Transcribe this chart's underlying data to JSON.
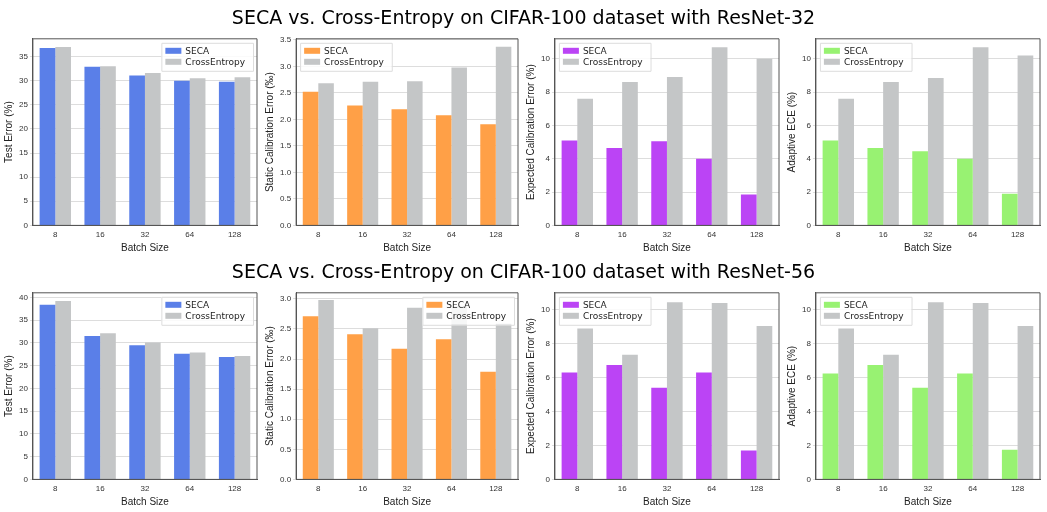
{
  "chart_data": [
    {
      "type": "bar",
      "title": "SECA vs. Cross-Entropy on CIFAR-100 dataset with ResNet-32",
      "xlabel": "Batch Size",
      "ylabel": "Test Error (%)",
      "categories": [
        "8",
        "16",
        "32",
        "64",
        "128"
      ],
      "ylim": [
        0,
        38.7
      ],
      "yticks": [
        0,
        5,
        10,
        15,
        20,
        25,
        30,
        35
      ],
      "grid": "y",
      "legend": "top right",
      "series": [
        {
          "name": "SECA",
          "color": "#5a7fe8",
          "values": [
            36.8,
            32.9,
            31.1,
            30.0,
            29.8
          ]
        },
        {
          "name": "CrossEntropy",
          "color": "#c4c6c7",
          "values": [
            37.0,
            33.0,
            31.6,
            30.5,
            30.7
          ]
        }
      ]
    },
    {
      "type": "bar",
      "xlabel": "Batch Size",
      "ylabel": "Static Calibration Error (‰)",
      "categories": [
        "8",
        "16",
        "32",
        "64",
        "128"
      ],
      "ylim": [
        0,
        3.52
      ],
      "yticks": [
        {
          "value": 0,
          "label": "0.0"
        },
        {
          "value": 0.5,
          "label": "0.5"
        },
        {
          "value": 1,
          "label": "1.0"
        },
        {
          "value": 1.5,
          "label": "1.5"
        },
        {
          "value": 2,
          "label": "2.0"
        },
        {
          "value": 2.5,
          "label": "2.5"
        },
        {
          "value": 3,
          "label": "3.0"
        },
        {
          "value": 3.5,
          "label": "3.5"
        }
      ],
      "grid": "y",
      "legend": "top left",
      "series": [
        {
          "name": "SECA",
          "color": "#ffa047",
          "values": [
            2.52,
            2.26,
            2.19,
            2.08,
            1.91
          ]
        },
        {
          "name": "CrossEntropy",
          "color": "#c4c6c7",
          "values": [
            2.68,
            2.71,
            2.72,
            2.98,
            3.37
          ]
        }
      ]
    },
    {
      "type": "bar",
      "xlabel": "Batch Size",
      "ylabel": "Expected Calibration Error (%)",
      "categories": [
        "8",
        "16",
        "32",
        "64",
        "128"
      ],
      "ylim": [
        0,
        11.2
      ],
      "yticks": [
        0,
        2,
        4,
        6,
        8,
        10
      ],
      "grid": "y",
      "legend": "top left",
      "series": [
        {
          "name": "SECA",
          "color": "#bb44f5",
          "values": [
            5.1,
            4.65,
            5.05,
            4.0,
            1.85
          ]
        },
        {
          "name": "CrossEntropy",
          "color": "#c4c6c7",
          "values": [
            7.6,
            8.6,
            8.9,
            10.7,
            10.0
          ]
        }
      ]
    },
    {
      "type": "bar",
      "xlabel": "Batch Size",
      "ylabel": "Adaptive ECE (%)",
      "categories": [
        "8",
        "16",
        "32",
        "64",
        "128"
      ],
      "ylim": [
        0,
        11.2
      ],
      "yticks": [
        0,
        2,
        4,
        6,
        8,
        10
      ],
      "grid": "y",
      "legend": "top left",
      "series": [
        {
          "name": "SECA",
          "color": "#98f272",
          "values": [
            5.1,
            4.65,
            4.45,
            4.0,
            1.9
          ]
        },
        {
          "name": "CrossEntropy",
          "color": "#c4c6c7",
          "values": [
            7.6,
            8.6,
            8.85,
            10.7,
            10.2
          ]
        }
      ]
    },
    {
      "type": "bar",
      "title": "SECA vs. Cross-Entropy on CIFAR-100 dataset with ResNet-56",
      "xlabel": "Batch Size",
      "ylabel": "Test Error (%)",
      "categories": [
        "8",
        "16",
        "32",
        "64",
        "128"
      ],
      "ylim": [
        0,
        41
      ],
      "yticks": [
        0,
        5,
        10,
        15,
        20,
        25,
        30,
        35,
        40
      ],
      "grid": "y",
      "legend": "top right",
      "series": [
        {
          "name": "SECA",
          "color": "#5a7fe8",
          "values": [
            38.4,
            31.5,
            29.5,
            27.6,
            26.9
          ]
        },
        {
          "name": "CrossEntropy",
          "color": "#c4c6c7",
          "values": [
            39.2,
            32.1,
            30.1,
            27.9,
            27.1
          ]
        }
      ]
    },
    {
      "type": "bar",
      "xlabel": "Batch Size",
      "ylabel": "Static Calibration Error (‰)",
      "categories": [
        "8",
        "16",
        "32",
        "64",
        "128"
      ],
      "ylim": [
        0,
        3.1
      ],
      "yticks": [
        {
          "value": 0,
          "label": "0.0"
        },
        {
          "value": 0.5,
          "label": "0.5"
        },
        {
          "value": 1,
          "label": "1.0"
        },
        {
          "value": 1.5,
          "label": "1.5"
        },
        {
          "value": 2,
          "label": "2.0"
        },
        {
          "value": 2.5,
          "label": "2.5"
        },
        {
          "value": 3,
          "label": "3.0"
        }
      ],
      "grid": "y",
      "legend": "top right",
      "series": [
        {
          "name": "SECA",
          "color": "#ffa047",
          "values": [
            2.71,
            2.41,
            2.17,
            2.33,
            1.79
          ]
        },
        {
          "name": "CrossEntropy",
          "color": "#c4c6c7",
          "values": [
            2.98,
            2.51,
            2.85,
            2.88,
            2.59
          ]
        }
      ]
    },
    {
      "type": "bar",
      "xlabel": "Batch Size",
      "ylabel": "Expected Calibration Error (%)",
      "categories": [
        "8",
        "16",
        "32",
        "64",
        "128"
      ],
      "ylim": [
        0,
        11
      ],
      "yticks": [
        0,
        2,
        4,
        6,
        8,
        10
      ],
      "grid": "y",
      "legend": "top left",
      "series": [
        {
          "name": "SECA",
          "color": "#bb44f5",
          "values": [
            6.3,
            6.75,
            5.4,
            6.3,
            1.7
          ]
        },
        {
          "name": "CrossEntropy",
          "color": "#c4c6c7",
          "values": [
            8.9,
            7.35,
            10.45,
            10.4,
            9.05
          ]
        }
      ]
    },
    {
      "type": "bar",
      "xlabel": "Batch Size",
      "ylabel": "Adaptive ECE (%)",
      "categories": [
        "8",
        "16",
        "32",
        "64",
        "128"
      ],
      "ylim": [
        0,
        11
      ],
      "yticks": [
        0,
        2,
        4,
        6,
        8,
        10
      ],
      "grid": "y",
      "legend": "top left",
      "series": [
        {
          "name": "SECA",
          "color": "#98f272",
          "values": [
            6.25,
            6.75,
            5.4,
            6.25,
            1.75
          ]
        },
        {
          "name": "CrossEntropy",
          "color": "#c4c6c7",
          "values": [
            8.9,
            7.35,
            10.45,
            10.4,
            9.05
          ]
        }
      ]
    }
  ]
}
